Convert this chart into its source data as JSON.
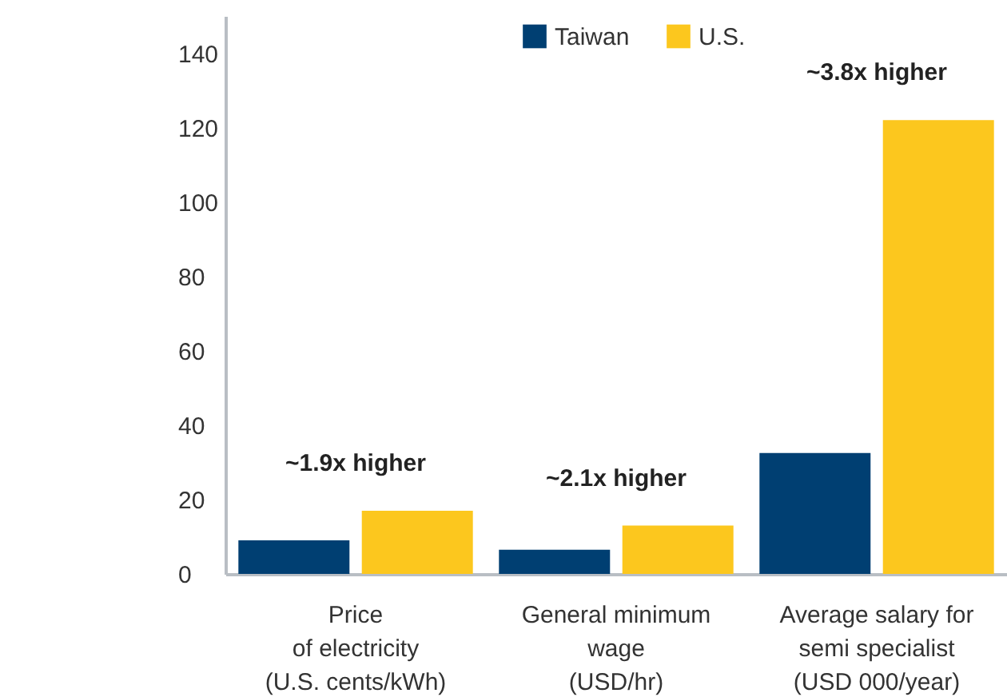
{
  "chart_data": {
    "type": "bar",
    "categories": [
      "Price\nof electricity\n(U.S. cents/kWh)",
      "General minimum\nwage\n(USD/hr)",
      "Average salary for\nsemi specialist\n(USD 000/year)"
    ],
    "series": [
      {
        "name": "Taiwan",
        "color": "#003f72",
        "values": [
          9,
          6.5,
          32.5
        ]
      },
      {
        "name": "U.S.",
        "color": "#fcc71e",
        "values": [
          17,
          13,
          122
        ]
      }
    ],
    "ylim": [
      0,
      150
    ],
    "yticks": [
      0,
      20,
      40,
      60,
      80,
      100,
      120,
      140
    ],
    "grid": false,
    "legend": "top",
    "annotations": [
      "~1.9x higher",
      "~2.1x higher",
      "~3.8x higher"
    ]
  }
}
